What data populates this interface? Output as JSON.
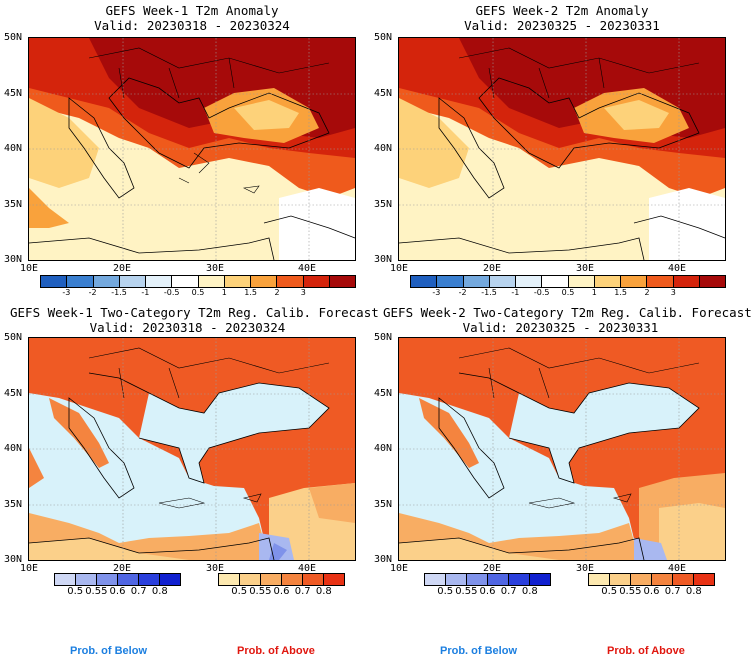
{
  "panels": {
    "p1": {
      "title": "GEFS Week-1 T2m Anomaly",
      "valid": "Valid: 20230318 - 20230324"
    },
    "p2": {
      "title": "GEFS Week-2 T2m Anomaly",
      "valid": "Valid: 20230325 - 20230331"
    },
    "p3": {
      "title": "GEFS Week-1 Two-Category T2m Reg. Calib. Forecast",
      "valid": "Valid: 20230318 - 20230324"
    },
    "p4": {
      "title": "GEFS Week-2 Two-Category T2m Reg. Calib. Forecast",
      "valid": "Valid: 20230325 - 20230331"
    }
  },
  "axes": {
    "lat_labels": [
      "50N",
      "45N",
      "40N",
      "35N",
      "30N"
    ],
    "lon_labels": [
      "10E",
      "20E",
      "30E",
      "40E"
    ]
  },
  "anomaly_colorbar": {
    "ticks": [
      "-3",
      "-2",
      "-1.5",
      "-1",
      "-0.5",
      "0.5",
      "1",
      "1.5",
      "2",
      "3"
    ],
    "colors": [
      "#1f5fbf",
      "#3a7fd0",
      "#74a9de",
      "#b7d3ee",
      "#e4f1fa",
      "#ffffff",
      "#fff3c4",
      "#fdd27a",
      "#f9a23c",
      "#ef5a1c",
      "#d4240c",
      "#a60a0a"
    ]
  },
  "prob_colorbars": {
    "below": {
      "ticks": [
        "0.5",
        "0.55",
        "0.6",
        "0.7",
        "0.8"
      ],
      "colors": [
        "#cfd8f5",
        "#a9b8f0",
        "#7f92ea",
        "#5066e3",
        "#2a3fdc",
        "#1020d0"
      ]
    },
    "above": {
      "ticks": [
        "0.5",
        "0.55",
        "0.6",
        "0.7",
        "0.8"
      ],
      "colors": [
        "#fde9b0",
        "#fbd08a",
        "#f8ad63",
        "#f4843f",
        "#ef5a24",
        "#e83214"
      ]
    }
  },
  "prob_labels": {
    "below": "Prob. of Below",
    "above": "Prob. of Above"
  },
  "colors": {
    "sea_anom": "#fff3c4",
    "sea_prob": "#d8f2fa",
    "below_text": "#1c7fe0",
    "above_text": "#e0170f"
  }
}
